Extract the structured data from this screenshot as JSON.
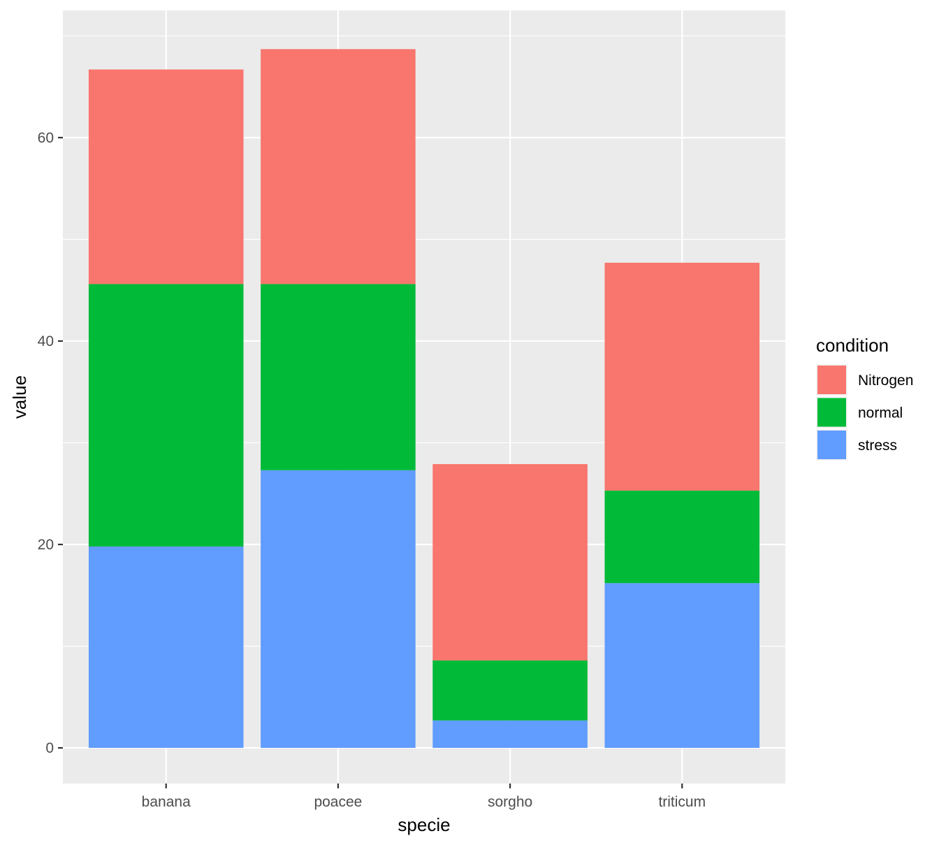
{
  "chart_data": {
    "type": "bar",
    "stacked": true,
    "categories": [
      "banana",
      "poacee",
      "sorgho",
      "triticum"
    ],
    "series": [
      {
        "name": "stress",
        "color": "#619CFF",
        "values": [
          19.8,
          27.3,
          2.7,
          16.2
        ]
      },
      {
        "name": "normal",
        "color": "#00BA38",
        "values": [
          25.8,
          18.3,
          5.9,
          9.1
        ]
      },
      {
        "name": "Nitrogen",
        "color": "#F8766D",
        "values": [
          21.1,
          23.1,
          19.3,
          22.4
        ]
      }
    ],
    "xlabel": "specie",
    "ylabel": "value",
    "ylim": [
      -3.5,
      72.5
    ],
    "yticks": [
      0,
      20,
      40,
      60
    ],
    "ytick_labels": [
      "0",
      "20",
      "40",
      "60"
    ],
    "grid": true,
    "panel_background": "#EBEBEB",
    "legend": {
      "title": "condition",
      "position": "right",
      "entries": [
        "Nitrogen",
        "normal",
        "stress"
      ]
    }
  }
}
